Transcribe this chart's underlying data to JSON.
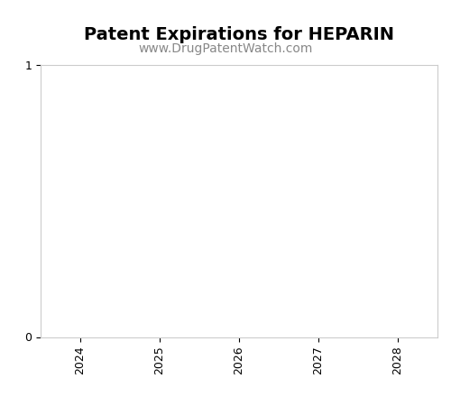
{
  "title": "Patent Expirations for HEPARIN",
  "subtitle": "www.DrugPatentWatch.com",
  "title_fontsize": 14,
  "subtitle_fontsize": 10,
  "title_fontweight": "bold",
  "xlim": [
    2023.5,
    2028.5
  ],
  "ylim": [
    0,
    1
  ],
  "xticks": [
    2024,
    2025,
    2026,
    2027,
    2028
  ],
  "yticks": [
    0,
    1
  ],
  "background_color": "#ffffff",
  "axes_facecolor": "#ffffff",
  "tick_label_fontsize": 9,
  "spine_color": "#cccccc",
  "grid": false,
  "subtitle_color": "#888888"
}
